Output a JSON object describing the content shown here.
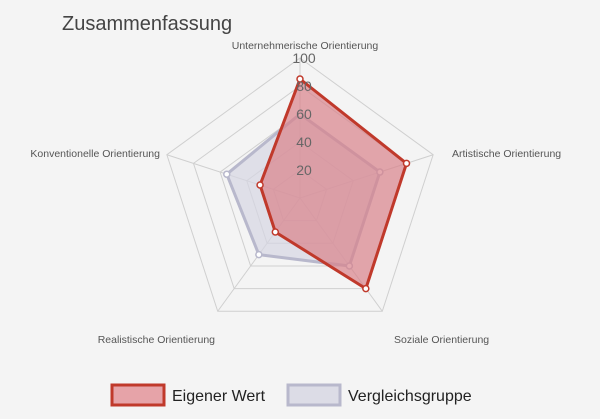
{
  "chart_data": {
    "type": "radar",
    "title": "Zusammenfassung",
    "axes": [
      "Unternehmerische Orientierung",
      "Artistische Orientierung",
      "Soziale Orientierung",
      "Realistische Orientierung",
      "Konventionelle Orientierung"
    ],
    "range": [
      0,
      100
    ],
    "ticks": [
      "20",
      "40",
      "60",
      "80",
      "100"
    ],
    "grid": true,
    "legend_position": "bottom",
    "series": [
      {
        "name": "Eigener Wert",
        "values": [
          85,
          80,
          80,
          30,
          30
        ],
        "stroke": "#c0392b",
        "fill": "#d9828a"
      },
      {
        "name": "Vergleichsgruppe",
        "values": [
          60,
          60,
          60,
          50,
          55
        ],
        "stroke": "#b8b8cc",
        "fill": "#d6d6e2"
      }
    ]
  }
}
